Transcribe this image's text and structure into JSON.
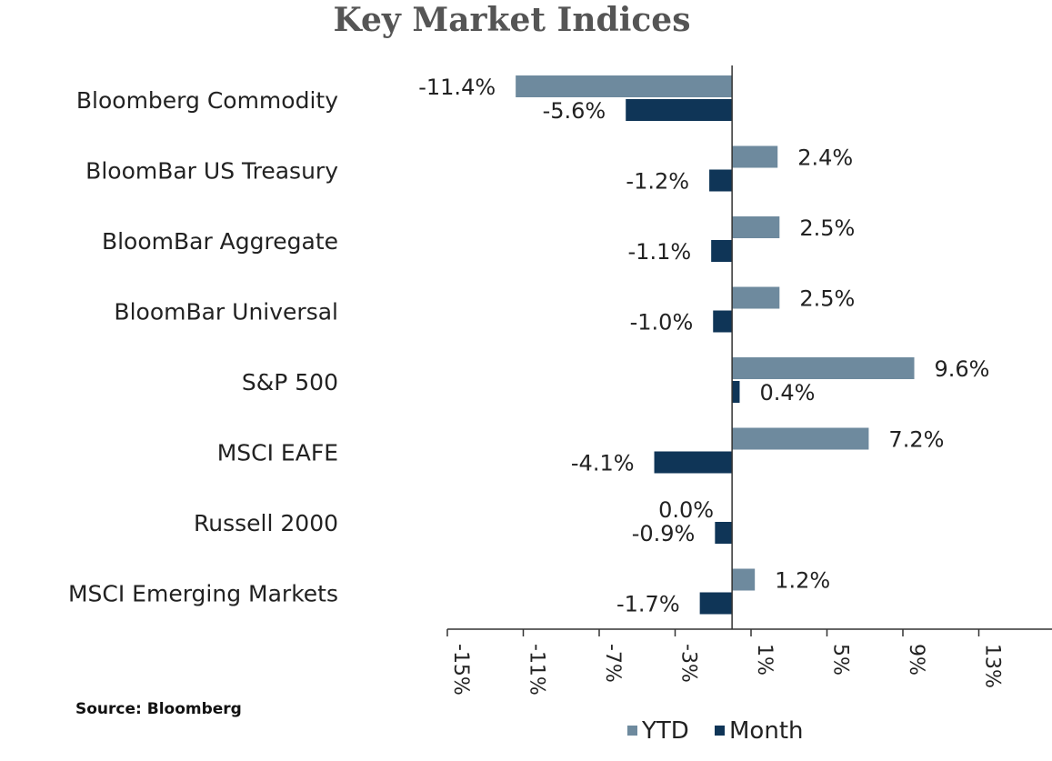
{
  "chart_data": {
    "type": "bar",
    "orientation": "horizontal",
    "title": "Key Market Indices",
    "categories": [
      "Bloomberg Commodity",
      "BloomBar US Treasury",
      "BloomBar Aggregate",
      "BloomBar Universal",
      "S&P 500",
      "MSCI EAFE",
      "Russell 2000",
      "MSCI Emerging Markets"
    ],
    "series": [
      {
        "name": "YTD",
        "color": "#6E8A9E",
        "values": [
          -11.4,
          2.4,
          2.5,
          2.5,
          9.6,
          7.2,
          0.0,
          1.2
        ],
        "labels": [
          "-11.4%",
          "2.4%",
          "2.5%",
          "2.5%",
          "9.6%",
          "7.2%",
          "0.0%",
          "1.2%"
        ]
      },
      {
        "name": "Month",
        "color": "#0F3557",
        "values": [
          -5.6,
          -1.2,
          -1.1,
          -1.0,
          0.4,
          -4.1,
          -0.9,
          -1.7
        ],
        "labels": [
          "-5.6%",
          "-1.2%",
          "-1.1%",
          "-1.0%",
          "0.4%",
          "-4.1%",
          "-0.9%",
          "-1.7%"
        ]
      }
    ],
    "xlim": [
      -15,
      17
    ],
    "xticks": [
      -15,
      -11,
      -7,
      -3,
      1,
      5,
      9,
      13
    ],
    "xtick_labels": [
      "-15%",
      "-11%",
      "-7%",
      "-3%",
      "1%",
      "5%",
      "9%",
      "13%"
    ],
    "grid": false,
    "legend_position": "bottom-center",
    "source": "Source: Bloomberg"
  }
}
